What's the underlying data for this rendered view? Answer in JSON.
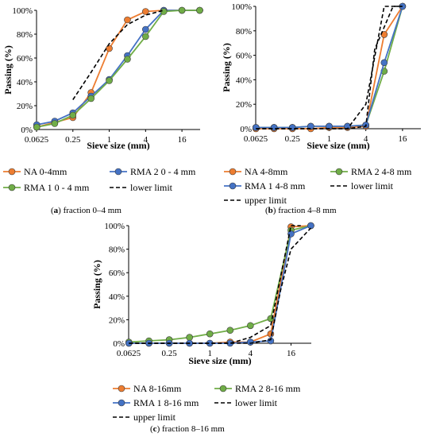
{
  "chart_data": [
    {
      "type": "line",
      "caption_letter": "a",
      "caption_text": "fraction 0–4 mm",
      "xlabel": "Sieve size (mm)",
      "ylabel": "Passing (%)",
      "xscale": "log2",
      "xlim": [
        0.0625,
        32
      ],
      "ylim": [
        0,
        100
      ],
      "xticks": [
        0.0625,
        0.25,
        1,
        4,
        16
      ],
      "xtick_labels": [
        "0.0625",
        "0.25",
        "1",
        "4",
        "16"
      ],
      "yticks": [
        0,
        20,
        40,
        60,
        80,
        100
      ],
      "ytick_labels": [
        "0%",
        "20%",
        "40%",
        "60%",
        "80%",
        "100%"
      ],
      "grid": false,
      "legend_position": "bottom",
      "series": [
        {
          "name": "NA 0-4mm",
          "color": "#ED7D31",
          "marker": "circle",
          "x": [
            0.063,
            0.125,
            0.25,
            0.5,
            1,
            2,
            4,
            8,
            16,
            31.5
          ],
          "y": [
            2,
            6,
            10,
            31,
            68,
            92,
            99,
            100,
            100,
            100
          ]
        },
        {
          "name": "RMA 2 0 - 4 mm",
          "color": "#4472C4",
          "marker": "circle",
          "x": [
            0.063,
            0.125,
            0.25,
            0.5,
            1,
            2,
            4,
            8,
            16,
            31.5
          ],
          "y": [
            4,
            7,
            14,
            28,
            42,
            62,
            84,
            100,
            100,
            100
          ]
        },
        {
          "name": "RMA 1 0 - 4 mm",
          "color": "#70AD47",
          "marker": "circle",
          "x": [
            0.063,
            0.125,
            0.25,
            0.5,
            1,
            2,
            4,
            8,
            16,
            31.5
          ],
          "y": [
            2,
            5,
            12,
            26,
            41,
            59,
            78,
            99,
            100,
            100
          ]
        },
        {
          "name": "lower limit",
          "color": "#000000",
          "dash": true,
          "x": [
            0.25,
            0.5,
            1,
            2,
            4,
            8
          ],
          "y": [
            25,
            48,
            72,
            88,
            96,
            100
          ]
        }
      ]
    },
    {
      "type": "line",
      "caption_letter": "b",
      "caption_text": "fraction 4–8 mm",
      "xlabel": "Sieve size (mm)",
      "ylabel": "Passing (%)",
      "xscale": "log2",
      "xlim": [
        0.0625,
        32
      ],
      "ylim": [
        0,
        100
      ],
      "xticks": [
        0.0625,
        0.25,
        1,
        4,
        16
      ],
      "xtick_labels": [
        "0.0625",
        "0.25",
        "1",
        "4",
        "16"
      ],
      "yticks": [
        0,
        20,
        40,
        60,
        80,
        100
      ],
      "ytick_labels": [
        "0%",
        "20%",
        "40%",
        "60%",
        "80%",
        "100%"
      ],
      "grid": false,
      "legend_position": "bottom",
      "series": [
        {
          "name": "NA 4-8mm",
          "color": "#ED7D31",
          "marker": "circle",
          "x": [
            0.063,
            0.125,
            0.25,
            0.5,
            1,
            2,
            4,
            8,
            16
          ],
          "y": [
            0,
            0,
            0,
            0,
            1,
            1,
            2,
            77,
            100
          ]
        },
        {
          "name": "RMA 2 4-8 mm",
          "color": "#70AD47",
          "marker": "circle",
          "x": [
            0.063,
            0.125,
            0.25,
            0.5,
            1,
            2,
            4,
            8,
            16
          ],
          "y": [
            1,
            1,
            1,
            2,
            2,
            2,
            3,
            47,
            100
          ]
        },
        {
          "name": "RMA 1 4-8 mm",
          "color": "#4472C4",
          "marker": "circle",
          "x": [
            0.063,
            0.125,
            0.25,
            0.5,
            1,
            2,
            4,
            8,
            16
          ],
          "y": [
            1,
            1,
            1,
            2,
            2,
            2,
            3,
            54,
            100
          ]
        },
        {
          "name": "lower limit",
          "color": "#000000",
          "dash": true,
          "x": [
            0.063,
            2,
            4,
            5.6,
            11.2,
            16
          ],
          "y": [
            0,
            0,
            2,
            65,
            100,
            100
          ]
        },
        {
          "name": "upper limit",
          "color": "#000000",
          "dash": true,
          "x": [
            0.063,
            2,
            4,
            8,
            11.2,
            16
          ],
          "y": [
            0,
            0,
            20,
            100,
            100,
            100
          ]
        }
      ]
    },
    {
      "type": "line",
      "caption_letter": "c",
      "caption_text": "fraction 8–16 mm",
      "xlabel": "Sieve size (mm)",
      "ylabel": "Passing (%)",
      "xscale": "log2",
      "xlim": [
        0.0625,
        32
      ],
      "ylim": [
        0,
        100
      ],
      "xticks": [
        0.0625,
        0.25,
        1,
        4,
        16
      ],
      "xtick_labels": [
        "0.0625",
        "0.25",
        "1",
        "4",
        "16"
      ],
      "yticks": [
        0,
        20,
        40,
        60,
        80,
        100
      ],
      "ytick_labels": [
        "0%",
        "20%",
        "40%",
        "60%",
        "80%",
        "100%"
      ],
      "grid": false,
      "legend_position": "bottom",
      "series": [
        {
          "name": "NA 8-16mm",
          "color": "#ED7D31",
          "marker": "circle",
          "x": [
            0.063,
            0.125,
            0.25,
            0.5,
            1,
            2,
            4,
            8,
            16,
            31.5
          ],
          "y": [
            0,
            0,
            0,
            0,
            0,
            1,
            1,
            8,
            99,
            100
          ]
        },
        {
          "name": "RMA 2 8-16 mm",
          "color": "#70AD47",
          "marker": "circle",
          "x": [
            0.063,
            0.125,
            0.25,
            0.5,
            1,
            2,
            4,
            8,
            16,
            31.5
          ],
          "y": [
            1,
            2,
            3,
            5,
            8,
            11,
            15,
            21,
            96,
            100
          ]
        },
        {
          "name": "RMA 1 8-16 mm",
          "color": "#4472C4",
          "marker": "circle",
          "x": [
            0.063,
            0.125,
            0.25,
            0.5,
            1,
            2,
            4,
            8,
            16,
            31.5
          ],
          "y": [
            0,
            0,
            0,
            0,
            0,
            0,
            1,
            2,
            93,
            100
          ]
        },
        {
          "name": "lower limit",
          "color": "#000000",
          "dash": true,
          "x": [
            0.063,
            2,
            4,
            8,
            11.2,
            16,
            31.5
          ],
          "y": [
            0,
            0,
            0,
            3,
            45,
            80,
            98
          ]
        },
        {
          "name": "upper limit",
          "color": "#000000",
          "dash": true,
          "x": [
            0.063,
            2,
            4,
            8,
            16,
            22.4
          ],
          "y": [
            0,
            0,
            5,
            15,
            100,
            100
          ]
        }
      ]
    }
  ]
}
